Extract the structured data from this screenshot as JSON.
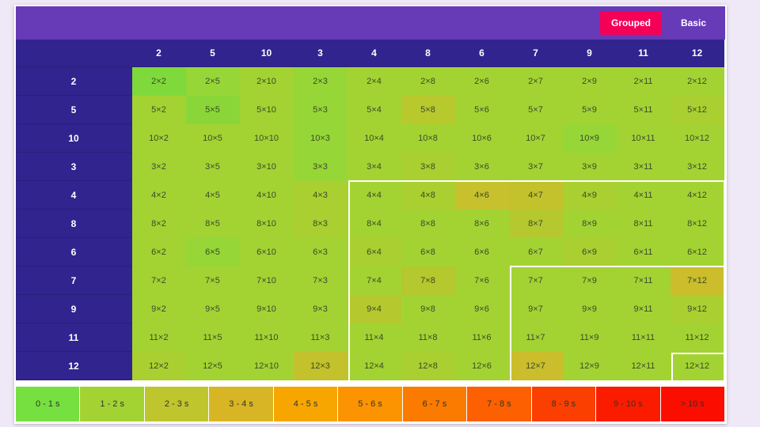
{
  "toolbar": {
    "grouped_label": "Grouped",
    "basic_label": "Basic"
  },
  "columns": [
    "2",
    "5",
    "10",
    "3",
    "4",
    "8",
    "6",
    "7",
    "9",
    "11",
    "12"
  ],
  "rows": [
    "2",
    "5",
    "10",
    "3",
    "4",
    "8",
    "6",
    "7",
    "9",
    "11",
    "12"
  ],
  "cell_colors": [
    [
      "#7fd93a",
      "#96d636",
      "#a3d333",
      "#96d636",
      "#a3d333",
      "#a3d333",
      "#a3d333",
      "#a3d333",
      "#a3d333",
      "#a3d333",
      "#a3d333"
    ],
    [
      "#a3d333",
      "#8ad638",
      "#a3d333",
      "#96d636",
      "#a3d333",
      "#b8c92e",
      "#a3d333",
      "#a3d333",
      "#a3d333",
      "#a3d333",
      "#a9cf31"
    ],
    [
      "#a3d333",
      "#a3d333",
      "#a3d333",
      "#96d636",
      "#a3d333",
      "#a3d333",
      "#a3d333",
      "#a3d333",
      "#96d636",
      "#a3d333",
      "#a3d333"
    ],
    [
      "#a3d333",
      "#a3d333",
      "#a3d333",
      "#96d636",
      "#a3d333",
      "#a9cf31",
      "#a3d333",
      "#a3d333",
      "#a3d333",
      "#a3d333",
      "#a3d333"
    ],
    [
      "#a3d333",
      "#a3d333",
      "#a3d333",
      "#a9cf31",
      "#a3d333",
      "#a9cf31",
      "#c6c12c",
      "#c3c12c",
      "#a9cf31",
      "#a3d333",
      "#a3d333"
    ],
    [
      "#a3d333",
      "#a3d333",
      "#a3d333",
      "#a9cf31",
      "#a3d333",
      "#a3d333",
      "#a3d333",
      "#b5c82e",
      "#a3d333",
      "#a3d333",
      "#a3d333"
    ],
    [
      "#a3d333",
      "#96d636",
      "#a3d333",
      "#a3d333",
      "#a9cf31",
      "#a3d333",
      "#a3d333",
      "#a3d333",
      "#a9cf31",
      "#a3d333",
      "#a3d333"
    ],
    [
      "#a3d333",
      "#a3d333",
      "#a3d333",
      "#a3d333",
      "#a3d333",
      "#b5c82e",
      "#a3d333",
      "#a3d333",
      "#a3d333",
      "#a3d333",
      "#cbbd2b"
    ],
    [
      "#a3d333",
      "#a3d333",
      "#a3d333",
      "#a3d333",
      "#b5c82e",
      "#a3d333",
      "#a3d333",
      "#a3d333",
      "#a3d333",
      "#a3d333",
      "#a9cf31"
    ],
    [
      "#a3d333",
      "#a3d333",
      "#a3d333",
      "#a3d333",
      "#a3d333",
      "#a3d333",
      "#a3d333",
      "#a3d333",
      "#a3d333",
      "#a3d333",
      "#a3d333"
    ],
    [
      "#a9cf31",
      "#a3d333",
      "#a3d333",
      "#c3c12c",
      "#a3d333",
      "#a9cf31",
      "#a3d333",
      "#cbbd2b",
      "#a3d333",
      "#a3d333",
      "#a3d333"
    ]
  ],
  "legend": [
    {
      "label": "0 - 1 s",
      "color": "#76e040"
    },
    {
      "label": "1 - 2 s",
      "color": "#a3d333"
    },
    {
      "label": "2 - 3 s",
      "color": "#bfc62d"
    },
    {
      "label": "3 - 4 s",
      "color": "#d8b524"
    },
    {
      "label": "4 - 5 s",
      "color": "#f7a600"
    },
    {
      "label": "5 - 6 s",
      "color": "#fb9400"
    },
    {
      "label": "6 - 7 s",
      "color": "#fb7a00"
    },
    {
      "label": "7 - 8 s",
      "color": "#fc6000"
    },
    {
      "label": "8 - 9 s",
      "color": "#fb3f00"
    },
    {
      "label": "9 - 10 s",
      "color": "#fb1c00"
    },
    {
      "label": "> 10 s",
      "color": "#fb0d00"
    }
  ],
  "colors": {
    "toolbar": "#673ab7",
    "header": "#31248f",
    "accent": "#f50057"
  }
}
